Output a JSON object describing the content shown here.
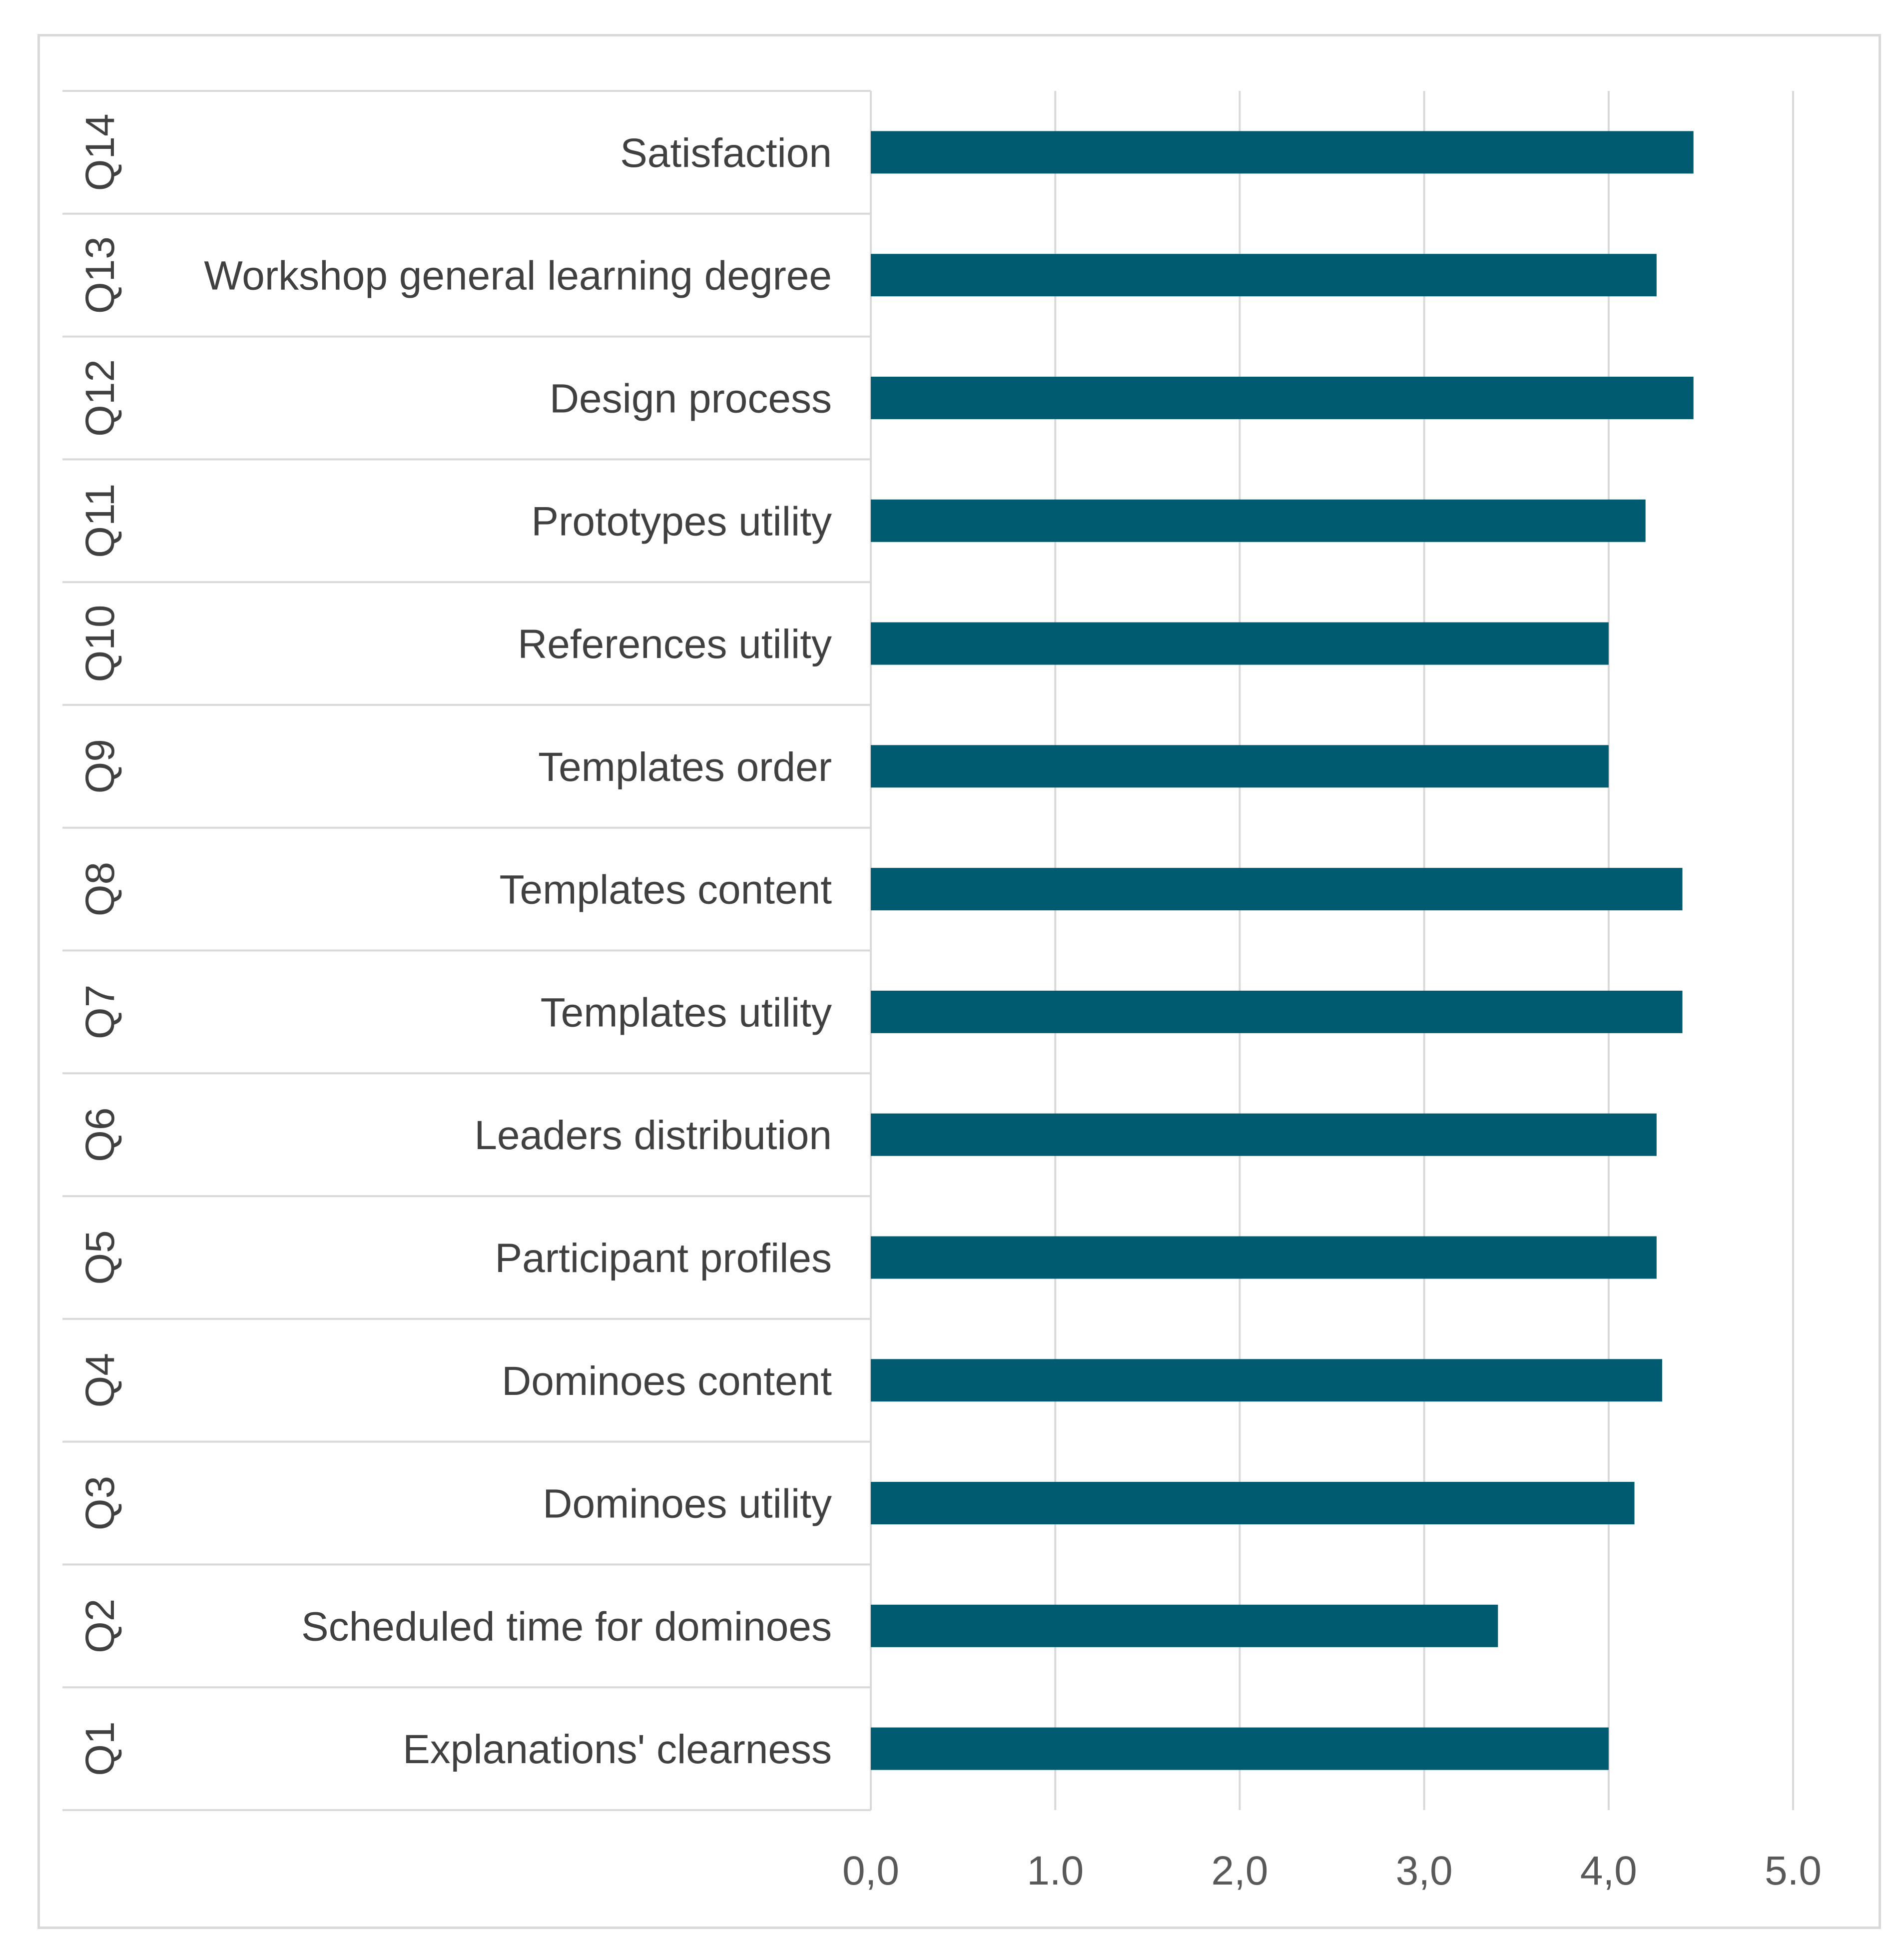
{
  "chart_data": {
    "type": "bar",
    "orientation": "horizontal",
    "codes": [
      "Q14",
      "Q13",
      "Q12",
      "Q11",
      "Q10",
      "Q9",
      "Q8",
      "Q7",
      "Q6",
      "Q5",
      "Q4",
      "Q3",
      "Q2",
      "Q1"
    ],
    "categories": [
      "Satisfaction",
      "Workshop general learning degree",
      "Design process",
      "Prototypes utility",
      "References utility",
      "Templates order",
      "Templates content",
      "Templates utility",
      "Leaders distribution",
      "Participant profiles",
      "Dominoes content",
      "Dominoes utility",
      "Scheduled time for dominoes",
      "Explanations' clearness"
    ],
    "values": [
      4.46,
      4.26,
      4.46,
      4.2,
      4.0,
      4.0,
      4.4,
      4.4,
      4.26,
      4.26,
      4.29,
      4.14,
      3.4,
      4.0
    ],
    "xlim": [
      0,
      5
    ],
    "xticks": [
      0,
      1,
      2,
      3,
      4,
      5
    ],
    "xtick_labels": [
      "0,0",
      "1.0",
      "2,0",
      "3,0",
      "4,0",
      "5.0"
    ],
    "title": "",
    "xlabel": "",
    "ylabel": "",
    "grid": "vertical",
    "legend": "none",
    "bar_color": "#005a70",
    "grid_color": "#d9d9d9"
  }
}
